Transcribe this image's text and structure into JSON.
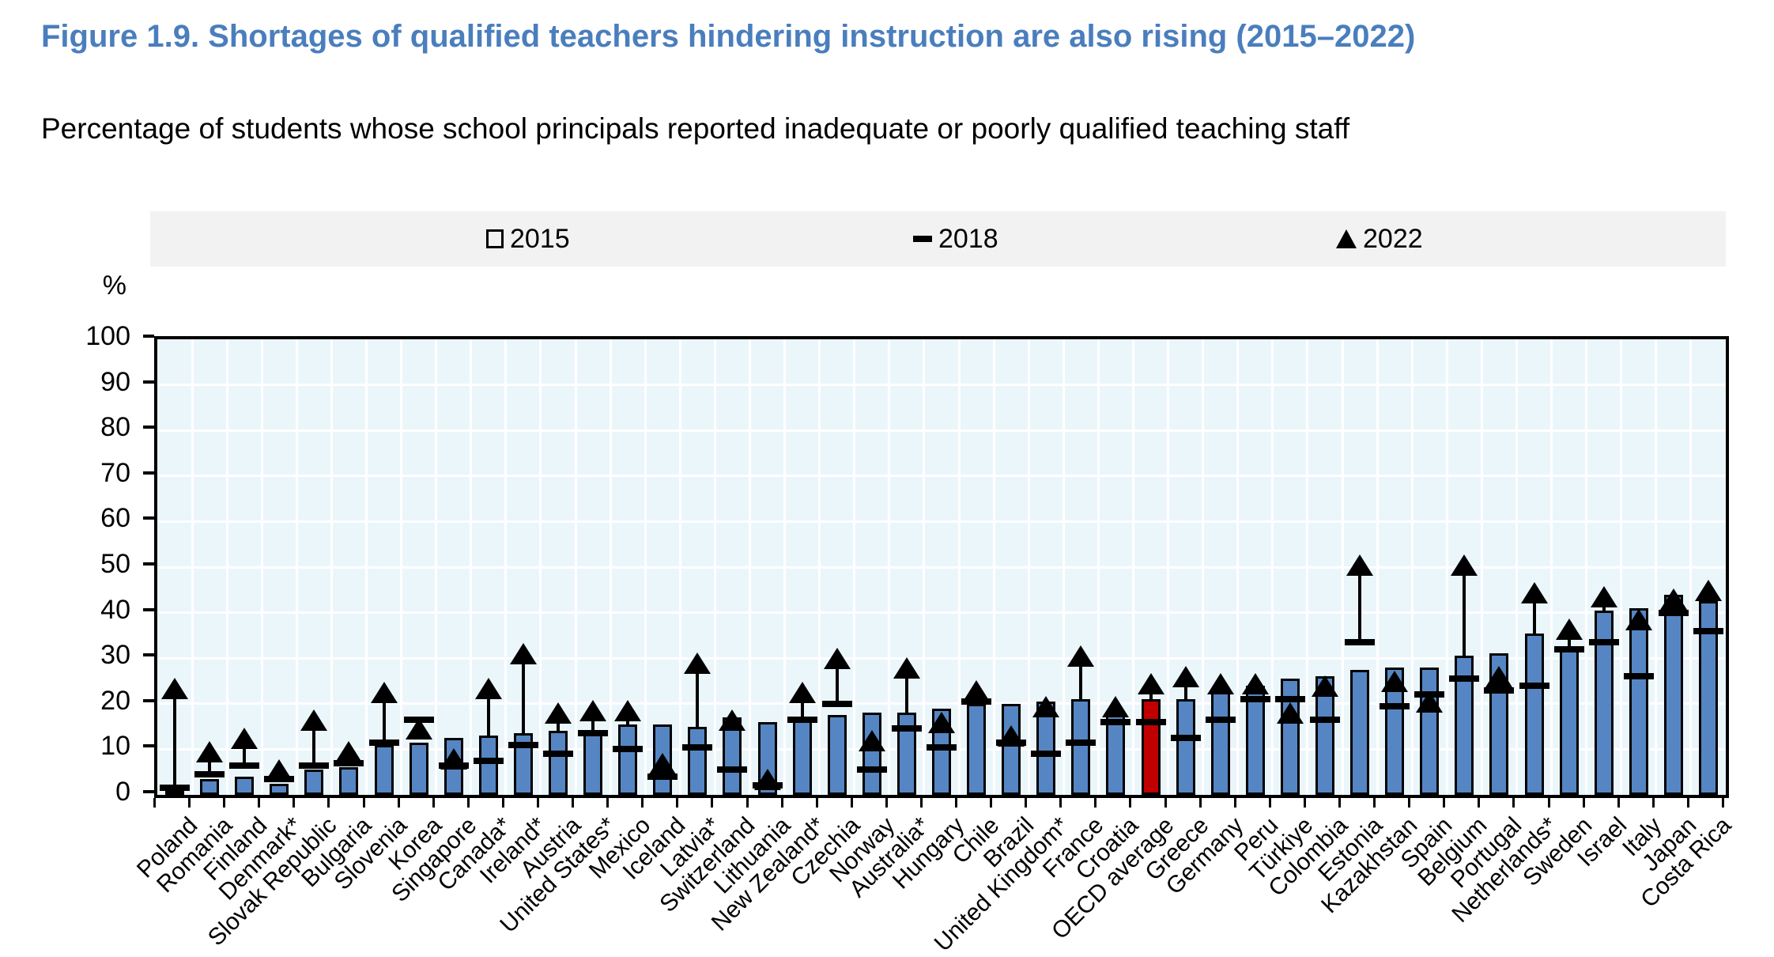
{
  "header": {
    "title": "Figure 1.9. Shortages of qualified teachers hindering instruction are also rising (2015–2022)",
    "subtitle": "Percentage of students whose school principals reported inadequate or poorly qualified teaching staff"
  },
  "legend": {
    "items": [
      {
        "label": "2015",
        "marker": "square"
      },
      {
        "label": "2018",
        "marker": "dash"
      },
      {
        "label": "2022",
        "marker": "triangle"
      }
    ]
  },
  "chart_data": {
    "type": "bar",
    "title": "Figure 1.9. Shortages of qualified teachers hindering instruction are also rising (2015–2022)",
    "subtitle": "Percentage of students whose school principals reported inadequate or poorly qualified teaching staff",
    "ylabel": "%",
    "ylim": [
      0,
      100
    ],
    "yticks": [
      0,
      10,
      20,
      30,
      40,
      50,
      60,
      70,
      80,
      90,
      100
    ],
    "grid": true,
    "legend_position": "top",
    "highlight_category": "OECD average",
    "colors": {
      "bar_2015": "#5586c3",
      "highlight_bar": "#c00000",
      "marker_2018": "#000000",
      "marker_2022": "#000000",
      "title_accent": "#4a7ebd",
      "plot_background": "#ebf6fb",
      "legend_background": "#f2f2f2"
    },
    "categories": [
      "Poland",
      "Romania",
      "Finland",
      "Denmark*",
      "Slovak Republic",
      "Bulgaria",
      "Slovenia",
      "Korea",
      "Singapore",
      "Canada*",
      "Ireland*",
      "Austria",
      "United States*",
      "Mexico",
      "Iceland",
      "Latvia*",
      "Switzerland",
      "Lithuania",
      "New Zealand*",
      "Czechia",
      "Norway",
      "Australia*",
      "Hungary",
      "Chile",
      "Brazil",
      "United Kingdom*",
      "France",
      "Croatia",
      "OECD average",
      "Greece",
      "Germany",
      "Peru",
      "Türkiye",
      "Colombia",
      "Estonia",
      "Kazakhstan",
      "Spain",
      "Belgium",
      "Portugal",
      "Netherlands*",
      "Sweden",
      "Israel",
      "Italy",
      "Japan",
      "Costa Rica"
    ],
    "series": [
      {
        "name": "2015",
        "marker": "bar",
        "values": [
          1,
          3.5,
          4,
          2.5,
          5.5,
          6,
          11,
          11.5,
          12.5,
          13,
          13.5,
          14,
          14,
          15.5,
          15.5,
          15,
          17,
          16,
          16.5,
          17.5,
          18,
          18,
          19,
          20,
          20,
          20.5,
          21,
          17.5,
          21,
          21,
          23.5,
          24,
          25.5,
          26,
          27.5,
          28,
          28,
          30.5,
          31,
          35.5,
          32.5,
          40.5,
          41,
          44,
          42.5
        ]
      },
      {
        "name": "2018",
        "marker": "dash",
        "values": [
          1.5,
          4.5,
          6.5,
          3.5,
          6.5,
          7,
          11.5,
          16.5,
          6.5,
          7.5,
          11,
          9,
          13.5,
          10,
          4,
          10.5,
          5.5,
          2,
          16.5,
          20,
          5.5,
          14.5,
          10.5,
          20.5,
          11.5,
          9,
          11.5,
          16,
          16,
          12.5,
          16.5,
          21,
          21,
          16.5,
          33.5,
          19.5,
          22,
          25.5,
          23,
          24,
          32,
          33.5,
          26,
          40,
          36
        ]
      },
      {
        "name": "2022",
        "marker": "triangle",
        "values": [
          23.5,
          9.5,
          12.5,
          5.5,
          16.5,
          9.5,
          22.5,
          14.5,
          8,
          23.5,
          31,
          18,
          18.5,
          18.5,
          7,
          29,
          16.5,
          3.5,
          22.5,
          30,
          12,
          28,
          16,
          23,
          13,
          19.5,
          30.5,
          19.5,
          24.5,
          26,
          24.5,
          24.5,
          18,
          24,
          50.5,
          25,
          20.5,
          50.5,
          26,
          44.5,
          36.5,
          43.5,
          38.5,
          43,
          45
        ]
      }
    ]
  }
}
